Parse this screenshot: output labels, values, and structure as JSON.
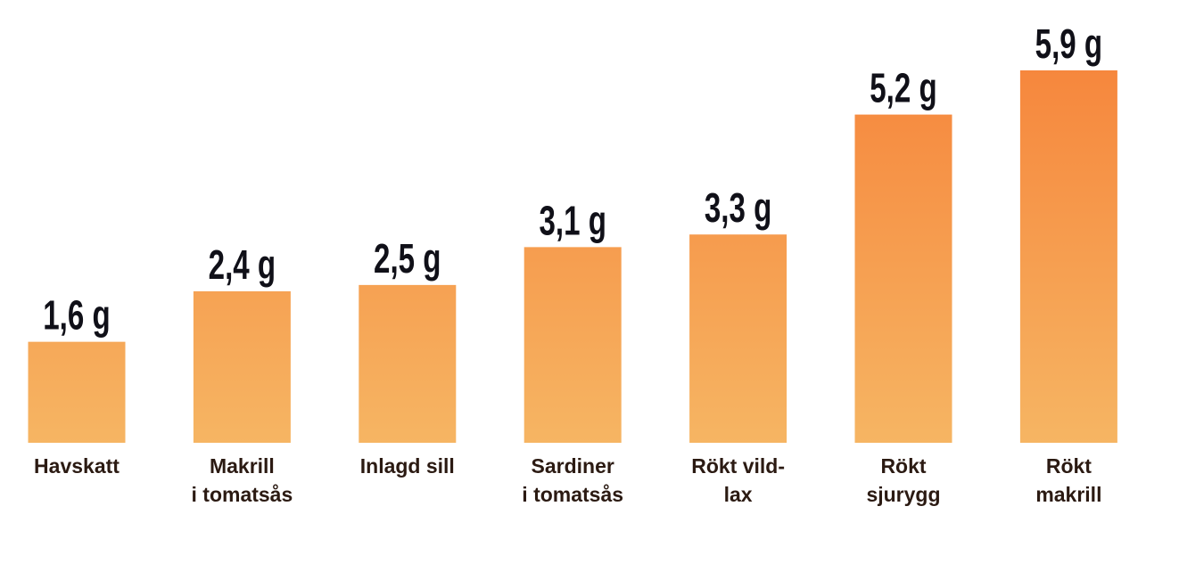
{
  "chart_data": {
    "type": "bar",
    "categories": [
      "Havskatt",
      "Makrill\ni tomatsås",
      "Inlagd sill",
      "Sardiner\ni tomatsås",
      "Rökt vild-\nlax",
      "Rökt\nsjurygg",
      "Rökt\nmakrill"
    ],
    "values": [
      1.6,
      2.4,
      2.5,
      3.1,
      3.3,
      5.2,
      5.9
    ],
    "value_labels": [
      "1,6 g",
      "2,4 g",
      "2,5 g",
      "3,1 g",
      "3,3 g",
      "5,2 g",
      "5,9 g"
    ],
    "gradient": [
      "#f6873d",
      "#f6b563"
    ]
  }
}
